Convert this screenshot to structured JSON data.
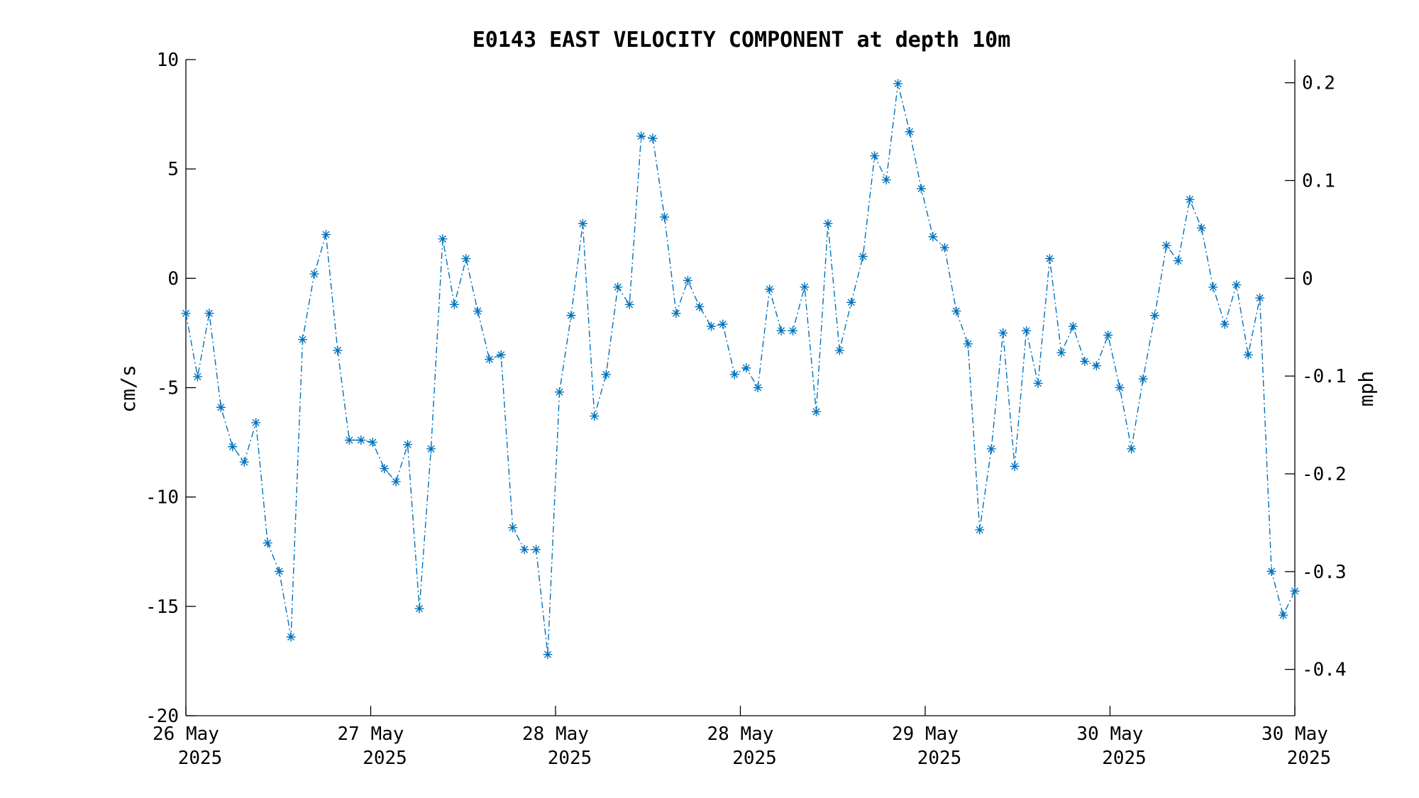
{
  "chart_data": {
    "type": "line",
    "title": "E0143 EAST VELOCITY COMPONENT at depth 10m",
    "ylabel": "cm/s",
    "y2label": "mph",
    "ylim": [
      -20,
      10
    ],
    "y2lim": [
      -0.4474,
      0.2237
    ],
    "yticks": [
      "10",
      "5",
      "0",
      "-5",
      "-10",
      "-15",
      "-20"
    ],
    "y2ticks": [
      "0.2",
      "0.1",
      "0",
      "-0.1",
      "-0.2",
      "-0.3",
      "-0.4"
    ],
    "xticks": [
      {
        "day": "26 May",
        "year": "2025"
      },
      {
        "day": "27 May",
        "year": "2025"
      },
      {
        "day": "28 May",
        "year": "2025"
      },
      {
        "day": "28 May",
        "year": "2025"
      },
      {
        "day": "29 May",
        "year": "2025"
      },
      {
        "day": "30 May",
        "year": "2025"
      },
      {
        "day": "30 May",
        "year": "2025"
      }
    ],
    "colors": {
      "series": "#0072BD",
      "axis": "#000000"
    },
    "series": [
      {
        "line_style": "dash-dot",
        "marker": "asterisk",
        "values": [
          -1.6,
          -4.5,
          -1.6,
          -5.9,
          -7.7,
          -8.4,
          -6.6,
          -12.1,
          -13.4,
          -16.4,
          -2.8,
          0.2,
          2.0,
          -3.3,
          -7.4,
          -7.4,
          -7.5,
          -8.7,
          -9.3,
          -7.6,
          -15.1,
          -7.8,
          1.8,
          -1.2,
          0.9,
          -1.5,
          -3.7,
          -3.5,
          -11.4,
          -12.4,
          -12.4,
          -17.2,
          -5.2,
          -1.7,
          2.5,
          -6.3,
          -4.4,
          -0.4,
          -1.2,
          6.5,
          6.4,
          2.8,
          -1.6,
          -0.1,
          -1.3,
          -2.2,
          -2.1,
          -4.4,
          -4.1,
          -5.0,
          -0.5,
          -2.4,
          -2.4,
          -0.4,
          -6.1,
          2.5,
          -3.3,
          -1.1,
          1.0,
          5.6,
          4.5,
          8.9,
          6.7,
          4.1,
          1.9,
          1.4,
          -1.5,
          -3.0,
          -11.5,
          -7.8,
          -2.5,
          -8.6,
          -2.4,
          -4.8,
          0.9,
          -3.4,
          -2.2,
          -3.8,
          -4.0,
          -2.6,
          -5.0,
          -7.8,
          -4.6,
          -1.7,
          1.5,
          0.8,
          3.6,
          2.3,
          -0.4,
          -2.1,
          -0.3,
          -3.5,
          -0.9,
          -13.4,
          -15.4,
          -14.3
        ]
      }
    ]
  }
}
